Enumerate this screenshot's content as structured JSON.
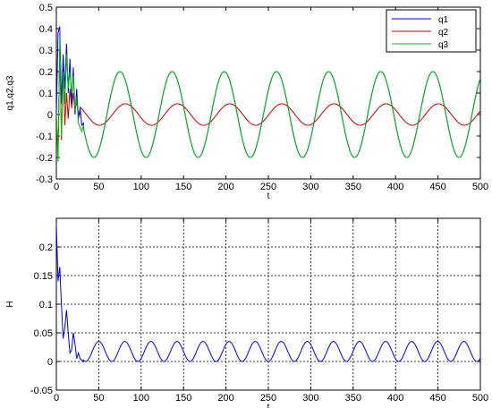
{
  "chart_data": [
    {
      "type": "line",
      "xlabel": "t",
      "ylabel": "q1,q2,q3",
      "xlim": [
        0,
        500
      ],
      "ylim": [
        -0.3,
        0.5
      ],
      "xticks": [
        "0",
        "50",
        "100",
        "150",
        "200",
        "250",
        "300",
        "350",
        "400",
        "450",
        "500"
      ],
      "yticks": [
        "-0.3",
        "-0.2",
        "-0.1",
        "0",
        "0.1",
        "0.2",
        "0.3",
        "0.4",
        "0.5"
      ],
      "grid": false,
      "legend": "top-right",
      "series": [
        {
          "name": "q1",
          "color": "#0000ff",
          "transient": [
            [
              0,
              0.0
            ],
            [
              2,
              0.38
            ],
            [
              4,
              0.41
            ],
            [
              6,
              0.05
            ],
            [
              8,
              0.28
            ],
            [
              10,
              0.12
            ],
            [
              12,
              0.33
            ],
            [
              14,
              0.1
            ],
            [
              16,
              0.26
            ],
            [
              18,
              0.05
            ],
            [
              20,
              0.22
            ],
            [
              22,
              0.0
            ],
            [
              24,
              0.12
            ],
            [
              26,
              -0.02
            ],
            [
              28,
              0.03
            ],
            [
              30,
              -0.05
            ],
            [
              32,
              -0.04
            ]
          ],
          "steady": {
            "start": 32,
            "amplitude": 0.2,
            "period": 61.5,
            "peak_t": 75
          }
        },
        {
          "name": "q2",
          "color": "#cc0000",
          "transient": [
            [
              0,
              0.0
            ],
            [
              2,
              -0.18
            ],
            [
              4,
              0.3
            ],
            [
              6,
              -0.12
            ],
            [
              8,
              0.22
            ],
            [
              10,
              -0.05
            ],
            [
              12,
              0.1
            ],
            [
              14,
              -0.02
            ],
            [
              16,
              0.12
            ],
            [
              18,
              0.03
            ],
            [
              20,
              0.1
            ],
            [
              22,
              0.02
            ],
            [
              24,
              0.06
            ],
            [
              26,
              0.0
            ],
            [
              28,
              0.0
            ]
          ],
          "steady": {
            "start": 28,
            "amplitude": 0.05,
            "period": 61.5,
            "peak_t": 20
          }
        },
        {
          "name": "q3",
          "color": "#00bb00",
          "transient": [
            [
              0,
              0.0
            ],
            [
              2,
              -0.22
            ],
            [
              4,
              0.36
            ],
            [
              6,
              -0.1
            ],
            [
              8,
              0.2
            ],
            [
              10,
              0.05
            ],
            [
              12,
              0.28
            ],
            [
              14,
              0.12
            ],
            [
              16,
              0.2
            ],
            [
              18,
              0.1
            ],
            [
              20,
              0.18
            ],
            [
              22,
              0.02
            ],
            [
              24,
              0.08
            ],
            [
              26,
              -0.04
            ],
            [
              28,
              -0.06
            ],
            [
              30,
              -0.08
            ],
            [
              32,
              -0.05
            ]
          ],
          "steady": {
            "start": 32,
            "amplitude": 0.2,
            "period": 61.5,
            "peak_t": 75
          }
        }
      ]
    },
    {
      "type": "line",
      "xlabel": "t",
      "ylabel": "H",
      "xlim": [
        0,
        500
      ],
      "ylim": [
        -0.05,
        0.25
      ],
      "xticks": [
        "0",
        "50",
        "100",
        "150",
        "200",
        "250",
        "300",
        "350",
        "400",
        "450",
        "500"
      ],
      "yticks": [
        "-0.05",
        "0",
        "0.05",
        "0.1",
        "0.15",
        "0.2"
      ],
      "grid": true,
      "series": [
        {
          "color": "#0000ff",
          "transient": [
            [
              0,
              0.24
            ],
            [
              2,
              0.14
            ],
            [
              4,
              0.165
            ],
            [
              6,
              0.1
            ],
            [
              8,
              0.04
            ],
            [
              10,
              0.06
            ],
            [
              12,
              0.09
            ],
            [
              14,
              0.05
            ],
            [
              16,
              0.015
            ],
            [
              18,
              0.02
            ],
            [
              20,
              0.05
            ],
            [
              22,
              0.03
            ],
            [
              24,
              0.005
            ],
            [
              26,
              0.015
            ],
            [
              28,
              0.005
            ],
            [
              32,
              0.0
            ]
          ],
          "steady": {
            "start": 32,
            "amplitude": 0.0175,
            "offset": 0.0175,
            "period": 30.75,
            "peak_t": 50
          }
        }
      ]
    }
  ]
}
